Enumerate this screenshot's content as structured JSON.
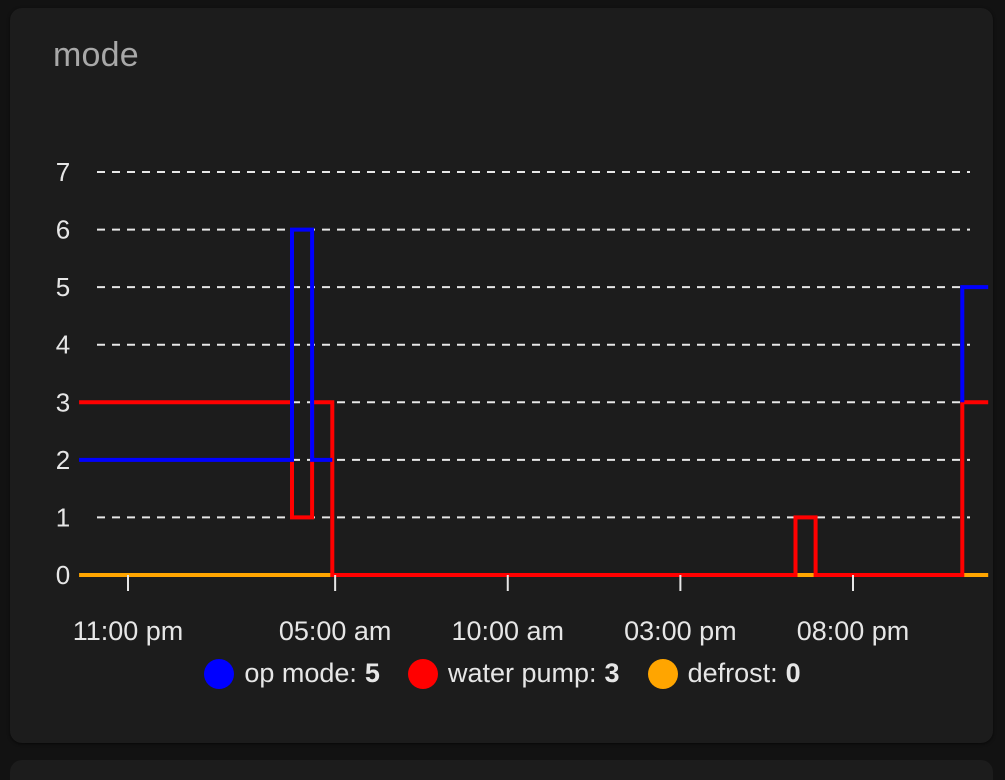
{
  "card": {
    "title": "mode"
  },
  "chart_data": {
    "type": "line",
    "step": true,
    "title": "mode",
    "xlabel": "",
    "ylabel": "",
    "ylim": [
      0,
      7
    ],
    "yticks": [
      "0",
      "1",
      "2",
      "3",
      "4",
      "5",
      "6",
      "7"
    ],
    "xlim": [
      "20:30",
      "44:30"
    ],
    "xticks": [
      {
        "t": "23:00",
        "label": "11:00 pm"
      },
      {
        "t": "29:00",
        "label": "05:00 am"
      },
      {
        "t": "34:00",
        "label": "10:00 am"
      },
      {
        "t": "39:00",
        "label": "03:00 pm"
      },
      {
        "t": "44:00",
        "label": "08:00 pm"
      }
    ],
    "grid": "horizontal-dashed",
    "legend_position": "bottom",
    "series": [
      {
        "name": "op mode",
        "current": "5",
        "color": "#0000ff",
        "points": [
          [
            "21:35",
            2
          ],
          [
            "27:45",
            2
          ],
          [
            "27:45",
            6
          ],
          [
            "28:20",
            6
          ],
          [
            "28:20",
            2
          ],
          [
            "28:55",
            2
          ]
        ],
        "points_tail": [
          [
            "47:10",
            3
          ],
          [
            "47:10",
            5
          ],
          [
            "47:55",
            5
          ]
        ]
      },
      {
        "name": "water pump",
        "current": "3",
        "color": "#ff0000",
        "points": [
          [
            "21:35",
            3
          ],
          [
            "27:45",
            3
          ],
          [
            "27:45",
            1
          ],
          [
            "28:20",
            1
          ],
          [
            "28:20",
            3
          ],
          [
            "28:55",
            3
          ],
          [
            "28:55",
            0
          ],
          [
            "42:20",
            0
          ],
          [
            "42:20",
            1
          ],
          [
            "42:55",
            1
          ],
          [
            "42:55",
            0
          ],
          [
            "47:10",
            0
          ],
          [
            "47:10",
            3
          ],
          [
            "47:55",
            3
          ]
        ]
      },
      {
        "name": "defrost",
        "current": "0",
        "color": "#ffa500",
        "points": [
          [
            "21:35",
            0
          ],
          [
            "47:55",
            0
          ]
        ]
      }
    ]
  }
}
